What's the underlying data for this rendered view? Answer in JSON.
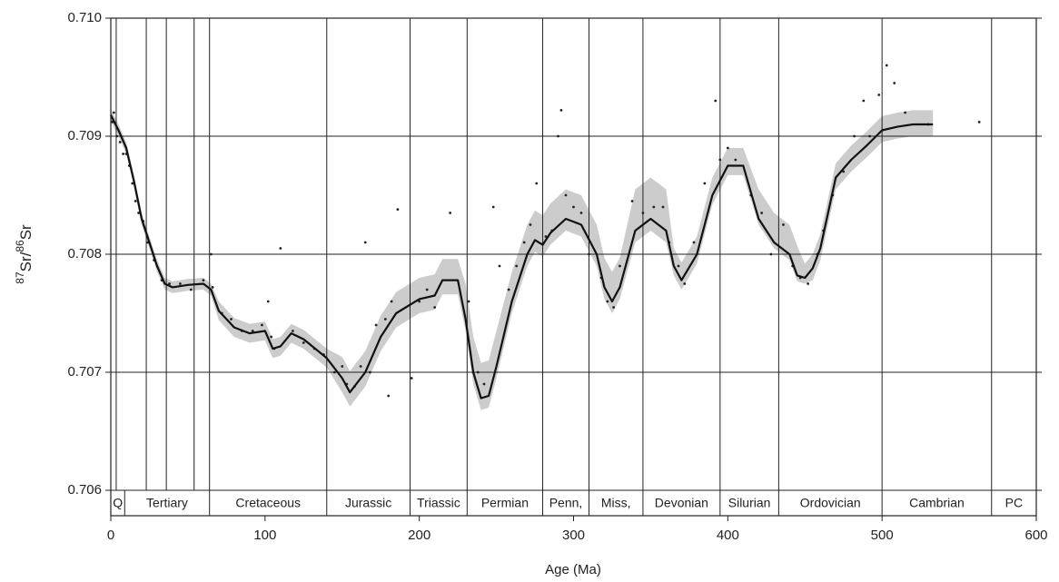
{
  "chart_data": {
    "type": "line",
    "x_label": "Age (Ma)",
    "y_label_parts": [
      "87",
      "Sr/",
      "86",
      "Sr"
    ],
    "xlim": [
      0,
      600
    ],
    "ylim": [
      0.706,
      0.71
    ],
    "xticks": [
      0,
      100,
      200,
      300,
      400,
      500,
      600
    ],
    "yticks": [
      0.706,
      0.707,
      0.708,
      0.709,
      {
        "value": 0.71,
        "label": "0.710"
      }
    ],
    "grid": true,
    "boundary_lines": [
      3.5,
      23,
      36,
      54,
      64,
      140,
      194,
      231,
      280,
      310,
      345,
      395,
      433,
      500,
      571
    ],
    "periods": [
      {
        "name": "Q",
        "start": 0,
        "end": 9
      },
      {
        "name": "Tertiary",
        "start": 9,
        "end": 64
      },
      {
        "name": "Cretaceous",
        "start": 64,
        "end": 140
      },
      {
        "name": "Jurassic",
        "start": 140,
        "end": 194
      },
      {
        "name": "Triassic",
        "start": 194,
        "end": 231
      },
      {
        "name": "Permian",
        "start": 231,
        "end": 280
      },
      {
        "name": "Penn,",
        "start": 280,
        "end": 310
      },
      {
        "name": "Miss,",
        "start": 310,
        "end": 345
      },
      {
        "name": "Devonian",
        "start": 345,
        "end": 395
      },
      {
        "name": "Silurian",
        "start": 395,
        "end": 433
      },
      {
        "name": "Ordovician",
        "start": 433,
        "end": 500
      },
      {
        "name": "Cambrian",
        "start": 500,
        "end": 571
      },
      {
        "name": "PC",
        "start": 571,
        "end": 600
      }
    ],
    "curve": {
      "color": "#111111",
      "x": [
        0,
        5,
        10,
        15,
        20,
        25,
        30,
        35,
        40,
        50,
        60,
        65,
        70,
        80,
        90,
        100,
        105,
        110,
        117,
        125,
        140,
        150,
        155,
        165,
        175,
        185,
        200,
        210,
        215,
        225,
        230,
        235,
        240,
        245,
        250,
        260,
        270,
        275,
        280,
        285,
        295,
        305,
        315,
        320,
        325,
        330,
        340,
        350,
        360,
        365,
        370,
        380,
        390,
        400,
        410,
        420,
        430,
        440,
        445,
        450,
        455,
        460,
        470,
        480,
        490,
        500,
        510,
        520,
        533
      ],
      "values": [
        0.70918,
        0.70905,
        0.7089,
        0.70862,
        0.7083,
        0.7081,
        0.7079,
        0.70775,
        0.70772,
        0.70774,
        0.70775,
        0.7077,
        0.70752,
        0.70738,
        0.70733,
        0.70735,
        0.7072,
        0.70722,
        0.70733,
        0.70728,
        0.70712,
        0.70695,
        0.70683,
        0.707,
        0.7073,
        0.7075,
        0.70762,
        0.70765,
        0.70778,
        0.70778,
        0.70745,
        0.707,
        0.70678,
        0.7068,
        0.70705,
        0.7076,
        0.708,
        0.70812,
        0.70808,
        0.70818,
        0.7083,
        0.70825,
        0.708,
        0.70772,
        0.7076,
        0.70772,
        0.7082,
        0.7083,
        0.7082,
        0.7079,
        0.70778,
        0.708,
        0.7085,
        0.70875,
        0.70875,
        0.7083,
        0.7081,
        0.708,
        0.70782,
        0.7078,
        0.70788,
        0.70805,
        0.70865,
        0.7088,
        0.70892,
        0.70905,
        0.70908,
        0.7091,
        0.7091
      ]
    },
    "band": {
      "color": "#cccccc",
      "upper": [
        0.70923,
        0.7091,
        0.70895,
        0.70867,
        0.70835,
        0.70815,
        0.70795,
        0.7078,
        0.70777,
        0.70779,
        0.7078,
        0.70775,
        0.7076,
        0.70746,
        0.70741,
        0.70743,
        0.70728,
        0.7073,
        0.70741,
        0.70736,
        0.7072,
        0.70713,
        0.70701,
        0.70718,
        0.70748,
        0.70768,
        0.7078,
        0.70783,
        0.70796,
        0.70796,
        0.70775,
        0.7073,
        0.70708,
        0.7071,
        0.70735,
        0.70785,
        0.70825,
        0.70837,
        0.70833,
        0.70843,
        0.70855,
        0.7085,
        0.70825,
        0.70797,
        0.70785,
        0.70797,
        0.70855,
        0.70865,
        0.70855,
        0.70805,
        0.70793,
        0.70815,
        0.70865,
        0.7089,
        0.7089,
        0.70855,
        0.70835,
        0.70825,
        0.70807,
        0.70792,
        0.708,
        0.70817,
        0.70877,
        0.70892,
        0.70904,
        0.70917,
        0.7092,
        0.70922,
        0.70922
      ],
      "lower": [
        0.70913,
        0.709,
        0.70885,
        0.70857,
        0.70825,
        0.70805,
        0.70785,
        0.7077,
        0.70767,
        0.70769,
        0.7077,
        0.70765,
        0.70744,
        0.7073,
        0.70725,
        0.70727,
        0.70712,
        0.70714,
        0.70725,
        0.7072,
        0.70704,
        0.70683,
        0.70671,
        0.70688,
        0.70718,
        0.70738,
        0.7075,
        0.70753,
        0.70766,
        0.70766,
        0.70735,
        0.7069,
        0.70668,
        0.7067,
        0.70695,
        0.7075,
        0.7079,
        0.70802,
        0.70798,
        0.70808,
        0.7082,
        0.70815,
        0.7079,
        0.70762,
        0.7075,
        0.70762,
        0.7081,
        0.7082,
        0.7081,
        0.70782,
        0.7077,
        0.70792,
        0.70842,
        0.70867,
        0.70867,
        0.70825,
        0.70805,
        0.70795,
        0.70777,
        0.70775,
        0.70778,
        0.70795,
        0.70855,
        0.7087,
        0.70882,
        0.70895,
        0.70898,
        0.709,
        0.709
      ]
    },
    "samples": {
      "color": "#222222",
      "x": [
        1,
        2,
        4,
        6,
        8,
        10,
        12,
        14,
        16,
        18,
        21,
        24,
        28,
        33,
        38,
        45,
        52,
        60,
        65,
        66,
        72,
        78,
        85,
        92,
        98,
        102,
        104,
        106,
        110,
        118,
        125,
        132,
        138,
        145,
        150,
        153,
        158,
        162,
        165,
        168,
        172,
        178,
        180,
        182,
        186,
        195,
        200,
        205,
        210,
        220,
        232,
        238,
        242,
        248,
        252,
        258,
        263,
        268,
        272,
        276,
        282,
        286,
        290,
        292,
        295,
        300,
        305,
        310,
        318,
        322,
        326,
        330,
        338,
        345,
        352,
        358,
        362,
        368,
        372,
        378,
        385,
        392,
        395,
        400,
        405,
        415,
        422,
        428,
        436,
        442,
        447,
        452,
        458,
        462,
        468,
        475,
        482,
        488,
        492,
        498,
        503,
        508,
        515,
        530,
        563
      ],
      "values": [
        0.70912,
        0.7092,
        0.709,
        0.70895,
        0.70885,
        0.70885,
        0.70875,
        0.7086,
        0.70845,
        0.70835,
        0.70828,
        0.7081,
        0.70795,
        0.70778,
        0.70775,
        0.70775,
        0.7077,
        0.70778,
        0.708,
        0.70772,
        0.7075,
        0.70745,
        0.70735,
        0.70735,
        0.7074,
        0.7076,
        0.7073,
        0.7072,
        0.70805,
        0.70735,
        0.70725,
        0.7072,
        0.70715,
        0.707,
        0.70705,
        0.7069,
        0.70688,
        0.70705,
        0.7081,
        0.707,
        0.7074,
        0.70745,
        0.7068,
        0.7076,
        0.70838,
        0.70695,
        0.7076,
        0.7077,
        0.70755,
        0.70835,
        0.7076,
        0.707,
        0.7069,
        0.7084,
        0.7079,
        0.7077,
        0.7079,
        0.7081,
        0.70825,
        0.7086,
        0.70815,
        0.7082,
        0.709,
        0.70922,
        0.7085,
        0.7084,
        0.70835,
        0.708,
        0.7078,
        0.7076,
        0.70755,
        0.7079,
        0.70845,
        0.70835,
        0.7084,
        0.7084,
        0.7081,
        0.7079,
        0.70775,
        0.7081,
        0.7086,
        0.7093,
        0.7088,
        0.7089,
        0.7088,
        0.7085,
        0.70835,
        0.708,
        0.70825,
        0.7079,
        0.7078,
        0.70775,
        0.708,
        0.7082,
        0.7085,
        0.7087,
        0.709,
        0.7093,
        0.709,
        0.70935,
        0.7096,
        0.70945,
        0.7092,
        0.7091,
        0.70912
      ]
    }
  }
}
